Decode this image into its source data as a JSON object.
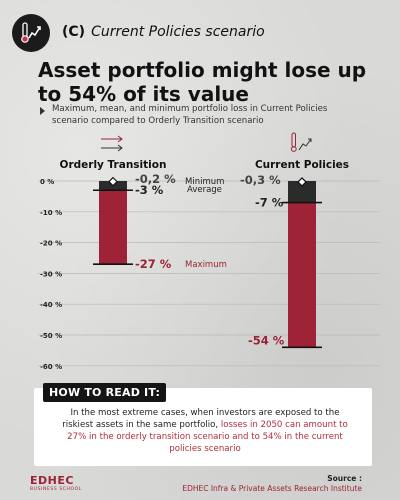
{
  "header": {
    "tag_letter": "(C)",
    "tag_text": "Current Policies scenario",
    "title": "Asset portfolio might lose up to 54% of its value",
    "subtitle": "Maximum, mean, and minimum portfolio loss in Current Policies scenario compared to Orderly Transition scenario"
  },
  "colors": {
    "bar": "#9e2337",
    "bar_top": "#2b2b2b",
    "label_red": "#9b2336",
    "text": "#222222"
  },
  "chart_data": {
    "type": "bar",
    "categories": [
      "Orderly Transition",
      "Current Policies"
    ],
    "series": [
      {
        "name": "Minimum",
        "values": [
          -0.2,
          -0.3
        ],
        "labels": [
          "-0,2 %",
          "-0,3 %"
        ]
      },
      {
        "name": "Average",
        "values": [
          -3,
          -7
        ],
        "labels": [
          "-3 %",
          "-7 %"
        ]
      },
      {
        "name": "Maximum",
        "values": [
          -27,
          -54
        ],
        "labels": [
          "-27 %",
          "-54 %"
        ]
      }
    ],
    "yticks": [
      0,
      -10,
      -20,
      -30,
      -40,
      -50,
      -60
    ],
    "ytick_labels": [
      "0 %",
      "-10 %",
      "-20 %",
      "-30 %",
      "-40 %",
      "-50 %",
      "-60 %"
    ],
    "ylim": [
      -60,
      0
    ]
  },
  "how_to_read": {
    "title": "HOW TO READ IT:",
    "text_before": "In the most extreme cases, when investors are exposed to the riskiest assets in the same portfolio, ",
    "text_highlight": "losses in 2050 can amount to 27% in the orderly transition scenario and to 54% in the current policies scenario",
    "text_after": ""
  },
  "footer": {
    "brand": "EDHEC",
    "brand_sub": "BUSINESS SCHOOL",
    "source_label": "Source :",
    "source_text": "EDHEC Infra & Private Assets Research Institute"
  }
}
